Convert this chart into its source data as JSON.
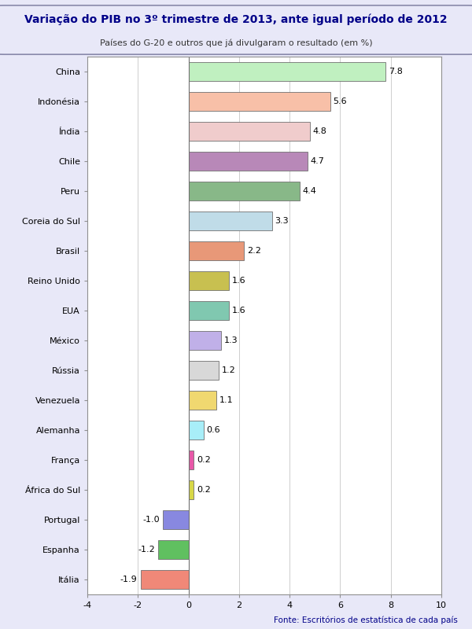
{
  "title": "Variação do PIB no 3º trimestre de 2013, ante igual período de 2012",
  "subtitle": "Países do G-20 e outros que já divulgaram o resultado (em %)",
  "source": "Fonte: Escritórios de estatística de cada país",
  "countries": [
    "China",
    "Indonésia",
    "Índia",
    "Chile",
    "Peru",
    "Coreia do Sul",
    "Brasil",
    "Reino Unido",
    "EUA",
    "México",
    "Rússia",
    "Venezuela",
    "Alemanha",
    "França",
    "África do Sul",
    "Portugal",
    "Espanha",
    "Itália"
  ],
  "values": [
    7.8,
    5.6,
    4.8,
    4.7,
    4.4,
    3.3,
    2.2,
    1.6,
    1.6,
    1.3,
    1.2,
    1.1,
    0.6,
    0.2,
    0.2,
    -1.0,
    -1.2,
    -1.9
  ],
  "colors": [
    "#c0f0c0",
    "#f8c0a8",
    "#f0cccc",
    "#b888b8",
    "#88b888",
    "#c0dce8",
    "#e89878",
    "#c8c050",
    "#80c8b0",
    "#c0b0e8",
    "#d8d8d8",
    "#f0d870",
    "#a8eef8",
    "#e858a8",
    "#d8d848",
    "#8888e0",
    "#60c060",
    "#f08878"
  ],
  "xlim": [
    -4,
    10
  ],
  "xticks": [
    -4,
    -2,
    0,
    2,
    4,
    6,
    8,
    10
  ],
  "bg_color": "#e8e8f8",
  "title_color": "#000088",
  "subtitle_color": "#333333",
  "source_color": "#000088",
  "bar_edge_color": "#707070",
  "grid_color": "#bbbbbb",
  "title_fontsize": 10,
  "subtitle_fontsize": 8,
  "label_fontsize": 8,
  "tick_fontsize": 8,
  "source_fontsize": 7.5
}
